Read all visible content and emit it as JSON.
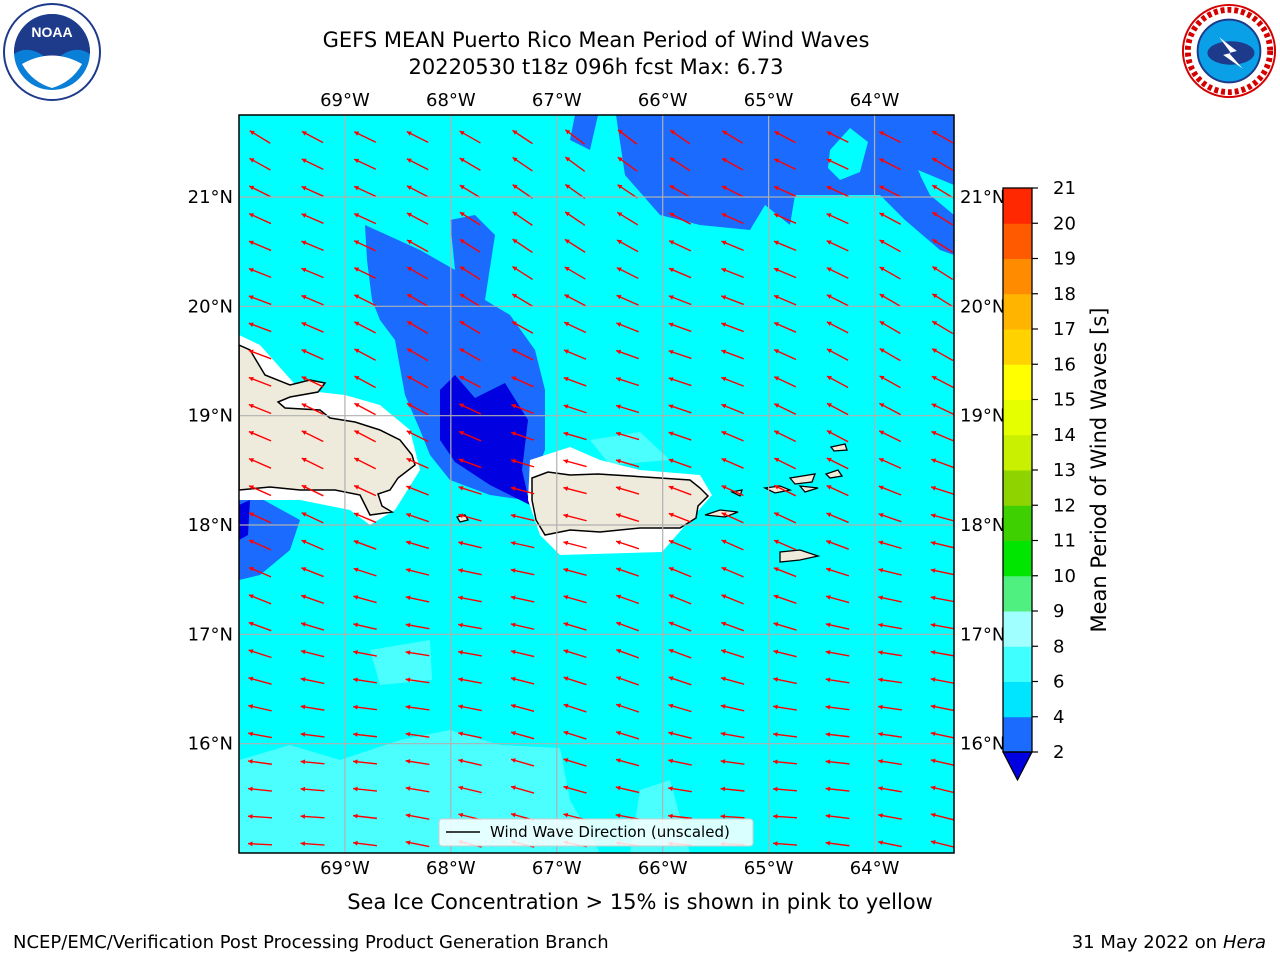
{
  "title": {
    "line1": "GEFS MEAN Puerto Rico Mean Period of Wind Waves",
    "line2": "20220530 t18z 096h fcst   Max: 6.73"
  },
  "subtitle": "Sea Ice Concentration > 15% is shown in pink to yellow",
  "footer": {
    "credit": "NCEP/EMC/Verification Post Processing Product Generation Branch",
    "date": "31 May 2022 on",
    "machine": "Hera"
  },
  "logos": {
    "left": {
      "icon": "noaa-logo-icon",
      "text": "NOAA"
    },
    "right": {
      "icon": "nws-logo-icon",
      "text": "NATIONAL WEATHER SERVICE"
    }
  },
  "map": {
    "lon_labels": [
      "69°W",
      "68°W",
      "67°W",
      "66°W",
      "65°W",
      "64°W"
    ],
    "lat_labels": [
      "21°N",
      "20°N",
      "19°N",
      "18°N",
      "17°N",
      "16°N"
    ],
    "extent": {
      "lon": [
        -70.0,
        -63.25
      ],
      "lat": [
        15.0,
        21.75
      ]
    },
    "legend_label": "Wind Wave Direction (unscaled)",
    "arrow_color": "#ff0000",
    "land_color": "#eeebdc"
  },
  "colorbar": {
    "label": "Mean Period of Wind Waves [s]",
    "ticks": [
      "2",
      "4",
      "6",
      "8",
      "9",
      "10",
      "11",
      "12",
      "13",
      "14",
      "15",
      "16",
      "17",
      "18",
      "19",
      "20",
      "21"
    ],
    "colors": [
      "#1b6bff",
      "#00e5ff",
      "#40ffff",
      "#a0ffff",
      "#50f080",
      "#00e600",
      "#3ed000",
      "#8fd400",
      "#c8f000",
      "#e6ff00",
      "#ffff00",
      "#ffd200",
      "#ffb400",
      "#ff8c00",
      "#ff5a00",
      "#ff2800"
    ],
    "under_color": "#0000e0"
  }
}
